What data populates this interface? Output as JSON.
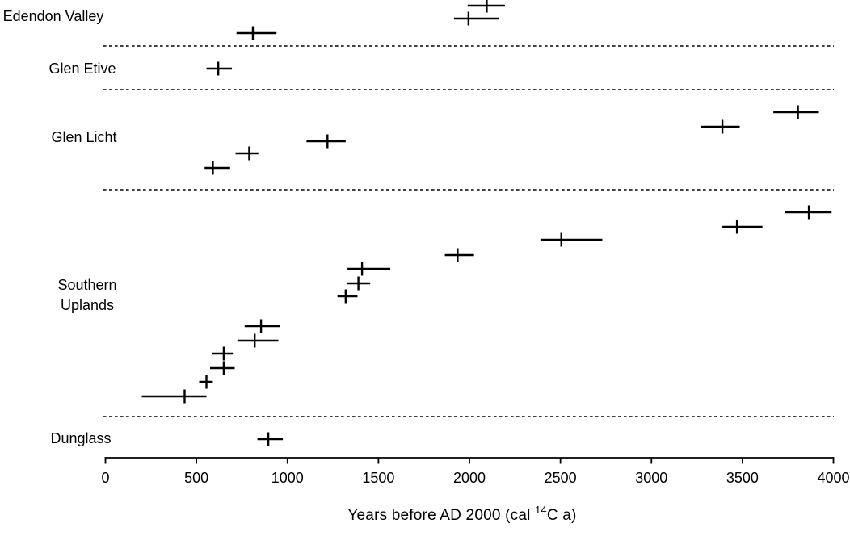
{
  "figure": {
    "description": "Horizontal error-bar plot of dated events grouped by site"
  },
  "chart_data": {
    "type": "scatter",
    "subtype": "dated-events-with-calibrated-ranges",
    "title": "",
    "xlabel": "Years before AD 2000 (cal 14C a)",
    "xlabel_parts": {
      "prefix": "Years before AD 2000 (cal ",
      "superscript": "14",
      "suffix": "C a)"
    },
    "ylabel": "",
    "xlim": [
      0,
      4000
    ],
    "xticks": [
      0,
      500,
      1000,
      1500,
      2000,
      2500,
      3000,
      3500,
      4000
    ],
    "grid": false,
    "legend": "none",
    "marker": "vertical tick at point estimate with horizontal bar spanning range",
    "colors": {
      "foreground": "#000000",
      "background": "#ffffff"
    },
    "sections": [
      {
        "site": "Edendon Valley",
        "label_lines": [
          "Edendon Valley"
        ],
        "points": [
          {
            "value": 2095,
            "range": [
              1990,
              2195
            ],
            "y": 7
          },
          {
            "value": 1995,
            "range": [
              1915,
              2160
            ],
            "y": 23
          },
          {
            "value": 810,
            "range": [
              720,
              940
            ],
            "y": 41
          }
        ]
      },
      {
        "site": "Glen Etive",
        "label_lines": [
          "Glen Etive"
        ],
        "points": [
          {
            "value": 620,
            "range": [
              555,
              695
            ],
            "y": 85
          }
        ]
      },
      {
        "site": "Glen Licht",
        "label_lines": [
          "Glen Licht"
        ],
        "points": [
          {
            "value": 3805,
            "range": [
              3670,
              3920
            ],
            "y": 139
          },
          {
            "value": 3390,
            "range": [
              3270,
              3485
            ],
            "y": 157
          },
          {
            "value": 1220,
            "range": [
              1105,
              1320
            ],
            "y": 175
          },
          {
            "value": 790,
            "range": [
              715,
              840
            ],
            "y": 190
          },
          {
            "value": 590,
            "range": [
              545,
              685
            ],
            "y": 208
          }
        ]
      },
      {
        "site": "Southern Uplands",
        "label_lines": [
          "Southern",
          "Uplands"
        ],
        "points": [
          {
            "value": 3865,
            "range": [
              3735,
              3990
            ],
            "y": 263
          },
          {
            "value": 3470,
            "range": [
              3390,
              3610
            ],
            "y": 281
          },
          {
            "value": 2505,
            "range": [
              2390,
              2730
            ],
            "y": 297
          },
          {
            "value": 1935,
            "range": [
              1865,
              2025
            ],
            "y": 316
          },
          {
            "value": 1410,
            "range": [
              1330,
              1565
            ],
            "y": 333
          },
          {
            "value": 1390,
            "range": [
              1325,
              1455
            ],
            "y": 351
          },
          {
            "value": 1320,
            "range": [
              1275,
              1385
            ],
            "y": 367
          },
          {
            "value": 855,
            "range": [
              765,
              960
            ],
            "y": 404
          },
          {
            "value": 820,
            "range": [
              725,
              950
            ],
            "y": 422
          },
          {
            "value": 650,
            "range": [
              585,
              700
            ],
            "y": 438
          },
          {
            "value": 650,
            "range": [
              575,
              710
            ],
            "y": 456
          },
          {
            "value": 555,
            "range": [
              515,
              590
            ],
            "y": 473
          },
          {
            "value": 435,
            "range": [
              200,
              555
            ],
            "y": 491
          }
        ]
      },
      {
        "site": "Dunglass",
        "label_lines": [
          "Dunglass"
        ],
        "points": [
          {
            "value": 895,
            "range": [
              835,
              975
            ],
            "y": 544
          }
        ]
      }
    ]
  }
}
